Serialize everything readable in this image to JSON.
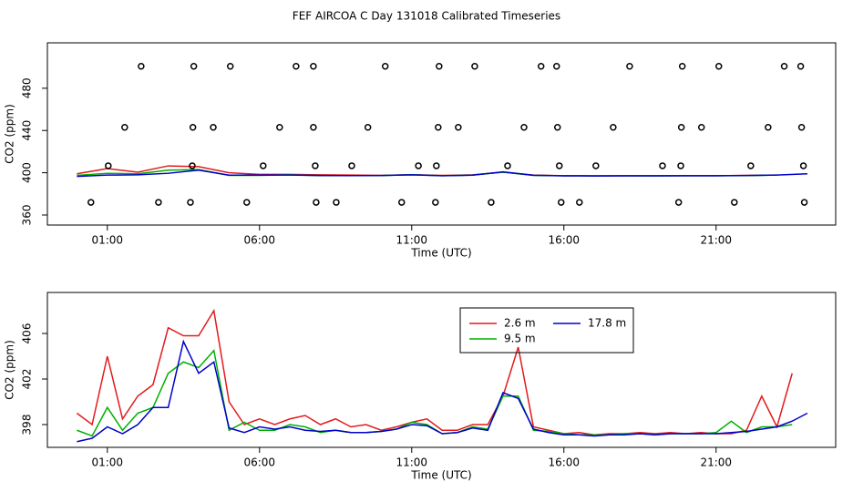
{
  "title": "FEF AIRCOA C  Day 131018  Calibrated Timeseries",
  "chart_data": [
    {
      "type": "line",
      "xlabel": "Time (UTC)",
      "ylabel": "CO2 (ppm)",
      "xlim": [
        -0.97,
        24.93
      ],
      "ylim": [
        350.5,
        523
      ],
      "xticks": [
        {
          "value": 1,
          "label": "01:00"
        },
        {
          "value": 6,
          "label": "06:00"
        },
        {
          "value": 11,
          "label": "11:00"
        },
        {
          "value": 16,
          "label": "16:00"
        },
        {
          "value": 21,
          "label": "21:00"
        }
      ],
      "yticks": [
        360,
        400,
        440,
        480
      ],
      "x": [
        0,
        1,
        2,
        3,
        4,
        5,
        6,
        7,
        8,
        9,
        10,
        11,
        12,
        13,
        14,
        15,
        16,
        17,
        18,
        19,
        20,
        21,
        22,
        23,
        24
      ],
      "series": [
        {
          "color": "#e41a1c",
          "values": [
            399.0,
            404.0,
            400.5,
            406.5,
            405.8,
            400.0,
            398.5,
            398.5,
            398.0,
            397.8,
            397.5,
            398.2,
            397.5,
            398.0,
            400.5,
            397.8,
            397.2,
            397.1,
            397.2,
            397.2,
            397.2,
            397.2,
            397.5,
            397.8,
            null
          ]
        },
        {
          "color": "#00b000",
          "values": [
            397.5,
            399.5,
            399.0,
            402.5,
            403.0,
            397.5,
            397.5,
            398.0,
            397.3,
            397.3,
            397.4,
            398.2,
            397.2,
            397.8,
            400.5,
            397.5,
            397.2,
            397.1,
            397.2,
            397.1,
            397.2,
            397.2,
            397.3,
            397.8,
            null
          ]
        },
        {
          "color": "#0000cc",
          "values": [
            396.5,
            397.8,
            398.0,
            399.5,
            402.5,
            397.7,
            397.8,
            397.8,
            397.4,
            397.3,
            397.4,
            398.0,
            397.2,
            397.7,
            400.8,
            397.6,
            397.1,
            397.0,
            397.1,
            397.1,
            397.2,
            397.2,
            397.4,
            397.8,
            399.0
          ]
        }
      ],
      "points": {
        "color": "#000000",
        "x": [
          2.11,
          3.84,
          5.04,
          7.2,
          7.77,
          10.13,
          11.9,
          13.07,
          15.25,
          15.76,
          18.16,
          19.89,
          21.09,
          23.24,
          23.78,
          1.57,
          3.81,
          4.48,
          6.66,
          7.77,
          9.56,
          11.87,
          12.53,
          14.69,
          15.79,
          17.62,
          19.86,
          20.52,
          22.71,
          23.81,
          1.03,
          3.79,
          6.12,
          7.83,
          9.03,
          11.22,
          11.81,
          14.15,
          15.85,
          17.05,
          19.24,
          19.84,
          22.14,
          23.87,
          0.46,
          2.68,
          3.73,
          5.58,
          7.86,
          8.52,
          10.67,
          11.78,
          13.61,
          15.91,
          16.51,
          19.77,
          21.6,
          23.9
        ],
        "values": [
          500.8,
          500.8,
          500.8,
          500.8,
          500.8,
          500.8,
          500.8,
          500.8,
          500.8,
          500.8,
          500.8,
          500.8,
          500.8,
          500.8,
          500.8,
          443,
          443,
          443,
          443,
          443,
          443,
          443,
          443,
          443,
          443,
          443,
          443,
          443,
          443,
          443,
          406.6,
          406.6,
          406.6,
          406.6,
          406.6,
          406.6,
          406.6,
          406.6,
          406.6,
          406.6,
          406.6,
          406.6,
          406.6,
          406.6,
          372,
          372,
          372,
          372,
          372,
          372,
          372,
          372,
          372,
          372,
          372,
          372,
          372,
          372
        ]
      }
    },
    {
      "type": "line",
      "xlabel": "Time (UTC)",
      "ylabel": "CO2 (ppm)",
      "xlim": [
        -0.97,
        24.93
      ],
      "ylim": [
        396,
        409.6
      ],
      "xticks": [
        {
          "value": 1,
          "label": "01:00"
        },
        {
          "value": 6,
          "label": "06:00"
        },
        {
          "value": 11,
          "label": "11:00"
        },
        {
          "value": 16,
          "label": "16:00"
        },
        {
          "value": 21,
          "label": "21:00"
        }
      ],
      "yticks": [
        398,
        402,
        406
      ],
      "legend": "top",
      "x": [
        0,
        0.5,
        1,
        1.5,
        2,
        2.5,
        3,
        3.5,
        4,
        4.5,
        5,
        5.5,
        6,
        6.5,
        7,
        7.5,
        8,
        8.5,
        9,
        9.5,
        10,
        10.5,
        11,
        11.5,
        12,
        12.5,
        13,
        13.5,
        14,
        14.5,
        15,
        15.5,
        16,
        16.5,
        17,
        17.5,
        18,
        18.5,
        19,
        19.5,
        20,
        20.5,
        21,
        21.5,
        22,
        22.5,
        23,
        23.5,
        24
      ],
      "series": [
        {
          "name": "2.6 m",
          "color": "#e41a1c",
          "values": [
            399.0,
            398.0,
            404.0,
            398.5,
            400.5,
            401.5,
            406.5,
            405.8,
            405.8,
            408.0,
            400.0,
            398.0,
            398.5,
            398.0,
            398.5,
            398.8,
            398.0,
            398.5,
            397.8,
            398.0,
            397.5,
            397.8,
            398.2,
            398.5,
            397.5,
            397.5,
            398.0,
            398.0,
            400.5,
            404.8,
            397.8,
            397.5,
            397.2,
            397.3,
            397.1,
            397.2,
            397.2,
            397.3,
            397.2,
            397.3,
            397.2,
            397.3,
            397.2,
            397.2,
            397.5,
            400.5,
            397.8,
            402.5,
            null
          ]
        },
        {
          "name": "9.5 m",
          "color": "#00b000",
          "values": [
            397.5,
            397.0,
            399.5,
            397.5,
            399.0,
            399.5,
            402.5,
            403.5,
            403.0,
            404.5,
            397.5,
            398.2,
            397.5,
            397.5,
            398.0,
            397.8,
            397.3,
            397.5,
            397.3,
            397.3,
            397.4,
            397.6,
            398.2,
            398.0,
            397.2,
            397.3,
            397.8,
            397.6,
            400.5,
            400.5,
            397.5,
            397.4,
            397.2,
            397.1,
            397.1,
            397.1,
            397.2,
            397.2,
            397.1,
            397.2,
            397.2,
            397.2,
            397.3,
            398.3,
            397.3,
            397.8,
            397.8,
            398.0,
            null
          ]
        },
        {
          "name": "17.8 m",
          "color": "#0000cc",
          "values": [
            396.5,
            396.8,
            397.8,
            397.2,
            398.0,
            399.5,
            399.5,
            405.3,
            402.5,
            403.5,
            397.7,
            397.3,
            397.8,
            397.6,
            397.8,
            397.5,
            397.4,
            397.5,
            397.3,
            397.3,
            397.4,
            397.6,
            398.0,
            397.9,
            397.2,
            397.3,
            397.7,
            397.5,
            400.8,
            400.3,
            397.6,
            397.3,
            397.1,
            397.1,
            397.0,
            397.1,
            397.1,
            397.2,
            397.1,
            397.2,
            397.2,
            397.2,
            397.2,
            397.3,
            397.4,
            397.6,
            397.8,
            398.3,
            399.0
          ]
        }
      ]
    }
  ]
}
